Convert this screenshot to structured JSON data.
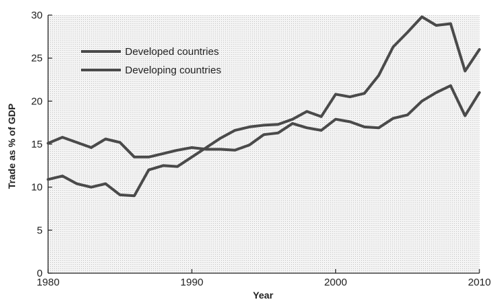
{
  "chart_data": {
    "type": "line",
    "title": "",
    "xlabel": "Year",
    "ylabel": "Trade as % of GDP",
    "xlim": [
      1980,
      2010
    ],
    "ylim": [
      0,
      30
    ],
    "xticks": [
      1980,
      1990,
      2000,
      2010
    ],
    "yticks": [
      0,
      5,
      10,
      15,
      20,
      25,
      30
    ],
    "grid": false,
    "legend_position": "top-left",
    "series": [
      {
        "name": "Developed countries",
        "color": "#4a4a4a",
        "x": [
          1980,
          1981,
          1982,
          1983,
          1984,
          1985,
          1986,
          1987,
          1988,
          1989,
          1990,
          1991,
          1992,
          1993,
          1994,
          1995,
          1996,
          1997,
          1998,
          1999,
          2000,
          2001,
          2002,
          2003,
          2004,
          2005,
          2006,
          2007,
          2008,
          2009,
          2010
        ],
        "y": [
          15.1,
          15.8,
          15.2,
          14.6,
          15.6,
          15.2,
          13.5,
          13.5,
          13.9,
          14.3,
          14.6,
          14.4,
          14.4,
          14.3,
          14.9,
          16.1,
          16.3,
          17.4,
          16.9,
          16.6,
          17.9,
          17.6,
          17.0,
          16.9,
          18.0,
          18.4,
          20.0,
          21.0,
          21.8,
          18.3,
          21.0
        ]
      },
      {
        "name": "Developing countries",
        "color": "#4a4a4a",
        "x": [
          1980,
          1981,
          1982,
          1983,
          1984,
          1985,
          1986,
          1987,
          1988,
          1989,
          1990,
          1991,
          1992,
          1993,
          1994,
          1995,
          1996,
          1997,
          1998,
          1999,
          2000,
          2001,
          2002,
          2003,
          2004,
          2005,
          2006,
          2007,
          2008,
          2009,
          2010
        ],
        "y": [
          10.9,
          11.3,
          10.4,
          10.0,
          10.4,
          9.1,
          9.0,
          12.0,
          12.5,
          12.4,
          13.5,
          14.6,
          15.7,
          16.6,
          17.0,
          17.2,
          17.3,
          17.9,
          18.8,
          18.2,
          20.8,
          20.5,
          20.9,
          23.0,
          26.3,
          28.0,
          29.8,
          28.8,
          29.0,
          23.5,
          26.0
        ]
      }
    ]
  }
}
